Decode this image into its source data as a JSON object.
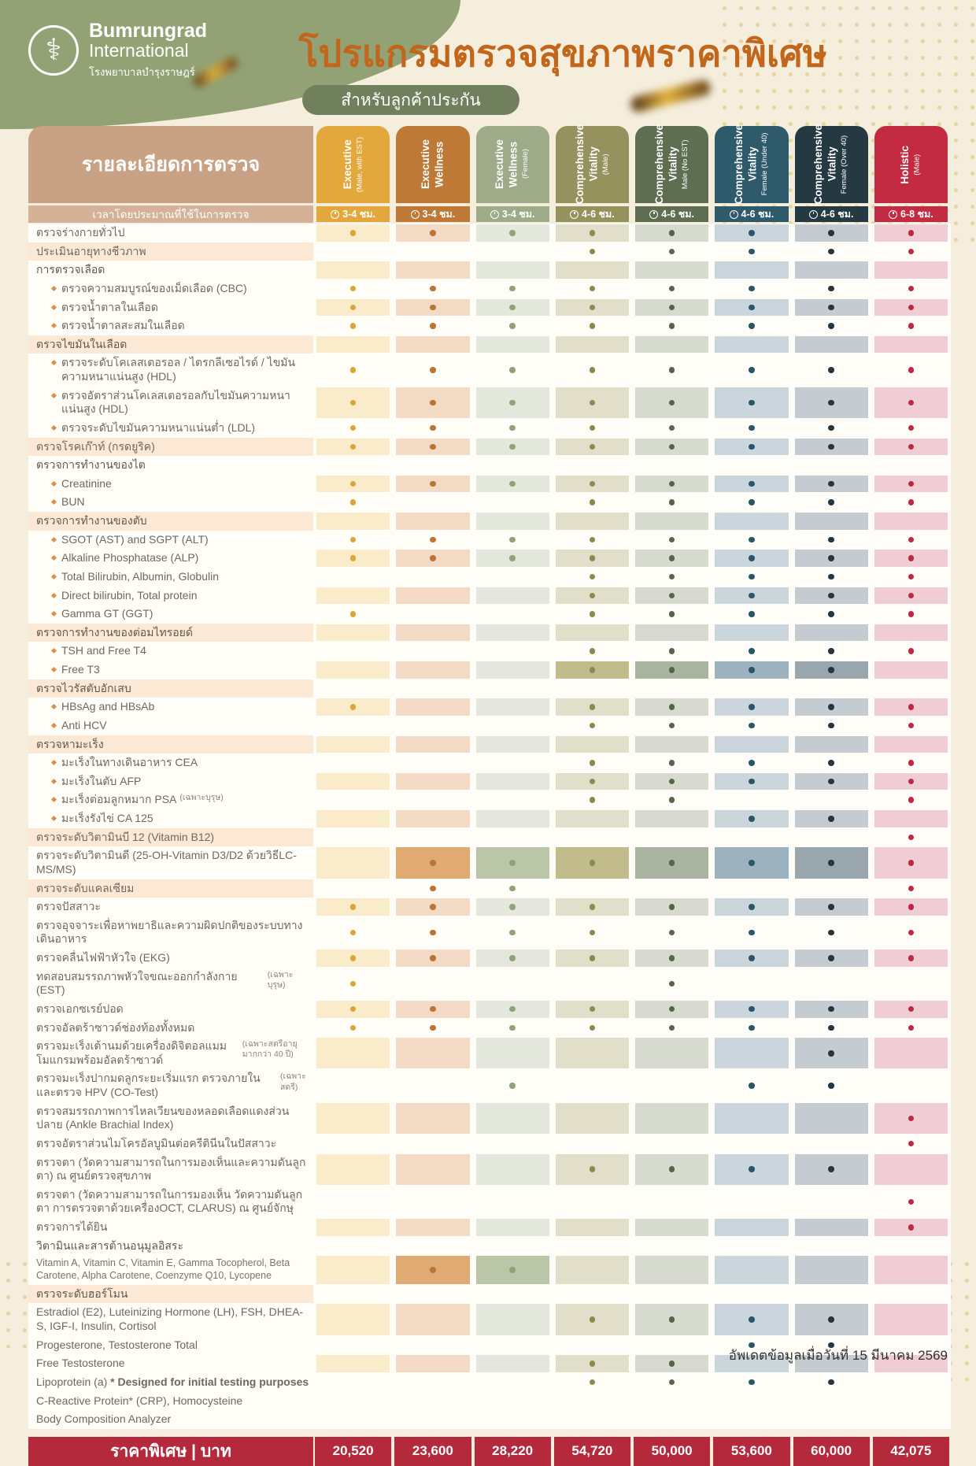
{
  "header": {
    "brand": {
      "line1": "Bumrungrad",
      "line2": "International",
      "line3": "โรงพยาบาลบำรุงราษฎร์"
    },
    "title": "โปรแกรมตรวจสุขภาพราคาพิเศษ",
    "badge": "สำหรับลูกค้าประกัน"
  },
  "theme": {
    "page_bg": "#F5EEDC",
    "blob_green": "#93A274",
    "title_orange": "#C2661C",
    "badge_green": "#71805C",
    "header_tan": "#C9A184",
    "time_tan": "#D4B197",
    "price_red": "#B42A3C",
    "label_tint": "#FBE9D6"
  },
  "table": {
    "details_header": "รายละเอียดการตรวจ",
    "time_label": "เวลาโดยประมาณที่ใช้ในการตรวจ",
    "price_label": "ราคาพิเศษ | บาท",
    "columns": [
      {
        "title_lines": [
          "Executive"
        ],
        "subtitle": "(Male, with EST)",
        "time": "3-4 ชม.",
        "price": "20,520",
        "head": "#E2A83B",
        "tint": "#FAECCB",
        "hl": "#EFD391",
        "dot": "#DCA637"
      },
      {
        "title_lines": [
          "Executive",
          "Wellness"
        ],
        "subtitle": null,
        "time": "3-4 ชม.",
        "price": "23,600",
        "head": "#BE7936",
        "tint": "#F2DAC4",
        "hl": "#DFAB72",
        "dot": "#BB7434"
      },
      {
        "title_lines": [
          "Executive",
          "Wellness"
        ],
        "subtitle": "(Female)",
        "time": "3-4 ชม.",
        "price": "28,220",
        "head": "#9DAB89",
        "tint": "#E4E7DB",
        "hl": "#B9C6A7",
        "dot": "#92A277"
      },
      {
        "title_lines": [
          "Comprehensive",
          "Vitality"
        ],
        "subtitle": "(Male)",
        "time": "4-6 ชม.",
        "price": "54,720",
        "head": "#96925D",
        "tint": "#E1DECA",
        "hl": "#C2BB8B",
        "dot": "#8B8850"
      },
      {
        "title_lines": [
          "Comprehensive",
          "Vitality"
        ],
        "subtitle": "Male (No EST)",
        "time": "4-6 ชม.",
        "price": "50,000",
        "head": "#5E6F51",
        "tint": "#D7DBCF",
        "hl": "#A9B5A0",
        "dot": "#556548"
      },
      {
        "title_lines": [
          "Comprehensive",
          "Vitality"
        ],
        "subtitle": "Female (Under 40)",
        "time": "4-6 ชม.",
        "price": "53,600",
        "head": "#2E5A6C",
        "tint": "#CAD6DC",
        "hl": "#9CB3BF",
        "dot": "#295669"
      },
      {
        "title_lines": [
          "Comprehensive",
          "Vitality"
        ],
        "subtitle": "Female (Over 40)",
        "time": "4-6 ชม.",
        "price": "60,000",
        "head": "#253943",
        "tint": "#C4CCD2",
        "hl": "#99A6AE",
        "dot": "#243740"
      },
      {
        "title_lines": [
          "Holistic"
        ],
        "subtitle": "(Male)",
        "time": "6-8 ชม.",
        "price": "42,075",
        "head": "#C22B41",
        "tint": "#F0CDD4",
        "hl": "#E09EAC",
        "dot": "#BB2A41"
      }
    ],
    "rows": [
      {
        "label": "ตรวจร่างกายทั่วไป",
        "type": "item",
        "dots": [
          1,
          1,
          1,
          1,
          1,
          1,
          1,
          1
        ]
      },
      {
        "label": "ประเมินอายุทางชีวภาพ",
        "type": "item",
        "tint": true,
        "dots": [
          0,
          0,
          0,
          1,
          1,
          1,
          1,
          1
        ]
      },
      {
        "label": "การตรวจเลือด",
        "type": "section",
        "dots": [
          0,
          0,
          0,
          0,
          0,
          0,
          0,
          0
        ]
      },
      {
        "label": "ตรวจความสมบูรณ์ของเม็ดเลือด (CBC)",
        "type": "sub",
        "dots": [
          1,
          1,
          1,
          1,
          1,
          1,
          1,
          1
        ]
      },
      {
        "label": "ตรวจน้ำตาลในเลือด",
        "type": "sub",
        "dots": [
          1,
          1,
          1,
          1,
          1,
          1,
          1,
          1
        ]
      },
      {
        "label": "ตรวจน้ำตาลสะสมในเลือด",
        "type": "sub",
        "dots": [
          1,
          1,
          1,
          1,
          1,
          1,
          1,
          1
        ]
      },
      {
        "label": "ตรวจไขมันในเลือด",
        "type": "section",
        "tint": true,
        "dots": [
          0,
          0,
          0,
          0,
          0,
          0,
          0,
          0
        ]
      },
      {
        "label": "ตรวจระดับโคเลสเตอรอล / ไตรกลีเซอไรด์ / ไขมันความหนาแน่นสูง (HDL)",
        "type": "sub",
        "dots": [
          1,
          1,
          1,
          1,
          1,
          1,
          1,
          1
        ]
      },
      {
        "label": "ตรวจอัตราส่วนโคเลสเตอรอลกับไขมันความหนาแน่นสูง (HDL)",
        "type": "sub",
        "dots": [
          1,
          1,
          1,
          1,
          1,
          1,
          1,
          1
        ]
      },
      {
        "label": "ตรวจระดับไขมันความหนาแน่นต่ำ (LDL)",
        "type": "sub",
        "dots": [
          1,
          1,
          1,
          1,
          1,
          1,
          1,
          1
        ]
      },
      {
        "label": "ตรวจโรคเก๊าท์ (กรดยูริค)",
        "type": "item",
        "tint": true,
        "dots": [
          1,
          1,
          1,
          1,
          1,
          1,
          1,
          1
        ]
      },
      {
        "label": "ตรวจการทำงานของไต",
        "type": "section",
        "dots": [
          0,
          0,
          0,
          0,
          0,
          0,
          0,
          0
        ]
      },
      {
        "label": "Creatinine",
        "type": "sub",
        "dots": [
          1,
          1,
          1,
          1,
          1,
          1,
          1,
          1
        ]
      },
      {
        "label": "BUN",
        "type": "sub",
        "dots": [
          1,
          0,
          0,
          1,
          1,
          1,
          1,
          1
        ]
      },
      {
        "label": "ตรวจการทำงานของตับ",
        "type": "section",
        "tint": true,
        "dots": [
          0,
          0,
          0,
          0,
          0,
          0,
          0,
          0
        ]
      },
      {
        "label": "SGOT (AST) and SGPT (ALT)",
        "type": "sub",
        "dots": [
          1,
          1,
          1,
          1,
          1,
          1,
          1,
          1
        ]
      },
      {
        "label": "Alkaline Phosphatase (ALP)",
        "type": "sub",
        "dots": [
          1,
          1,
          1,
          1,
          1,
          1,
          1,
          1
        ]
      },
      {
        "label": "Total Bilirubin, Albumin, Globulin",
        "type": "sub",
        "dots": [
          0,
          0,
          0,
          1,
          1,
          1,
          1,
          1
        ]
      },
      {
        "label": "Direct bilirubin, Total protein",
        "type": "sub",
        "dots": [
          0,
          0,
          0,
          1,
          1,
          1,
          1,
          1
        ]
      },
      {
        "label": "Gamma GT (GGT)",
        "type": "sub",
        "dots": [
          1,
          0,
          0,
          1,
          1,
          1,
          1,
          1
        ]
      },
      {
        "label": "ตรวจการทำงานของต่อมไทรอยด์",
        "type": "section",
        "tint": true,
        "dots": [
          0,
          0,
          0,
          0,
          0,
          0,
          0,
          0
        ]
      },
      {
        "label": "TSH and Free T4",
        "type": "sub",
        "dots": [
          0,
          0,
          0,
          1,
          1,
          1,
          1,
          1
        ]
      },
      {
        "label": "Free T3",
        "type": "sub",
        "dots": [
          0,
          0,
          0,
          1,
          1,
          1,
          1,
          0
        ],
        "hl": [
          0,
          0,
          0,
          1,
          1,
          1,
          1,
          0
        ]
      },
      {
        "label": "ตรวจไวรัสตับอักเสบ",
        "type": "section",
        "tint": true,
        "dots": [
          0,
          0,
          0,
          0,
          0,
          0,
          0,
          0
        ]
      },
      {
        "label": "HBsAg and HBsAb",
        "type": "sub",
        "dots": [
          1,
          0,
          0,
          1,
          1,
          1,
          1,
          1
        ]
      },
      {
        "label": "Anti HCV",
        "type": "sub",
        "dots": [
          0,
          0,
          0,
          1,
          1,
          1,
          1,
          1
        ]
      },
      {
        "label": "ตรวจหามะเร็ง",
        "type": "section",
        "tint": true,
        "dots": [
          0,
          0,
          0,
          0,
          0,
          0,
          0,
          0
        ]
      },
      {
        "label": "มะเร็งในทางเดินอาหาร CEA",
        "type": "sub",
        "dots": [
          0,
          0,
          0,
          1,
          1,
          1,
          1,
          1
        ]
      },
      {
        "label": "มะเร็งในตับ AFP",
        "type": "sub",
        "dots": [
          0,
          0,
          0,
          1,
          1,
          1,
          1,
          1
        ]
      },
      {
        "label": "มะเร็งต่อมลูกหมาก PSA",
        "small": "(เฉพาะบุรุษ)",
        "type": "sub",
        "dots": [
          0,
          0,
          0,
          1,
          1,
          0,
          0,
          1
        ]
      },
      {
        "label": "มะเร็งรังไข่ CA 125",
        "type": "sub",
        "dots": [
          0,
          0,
          0,
          0,
          0,
          1,
          1,
          0
        ]
      },
      {
        "label": "ตรวจระดับวิตามินบี 12 (Vitamin B12)",
        "type": "item",
        "tint": true,
        "dots": [
          0,
          0,
          0,
          0,
          0,
          0,
          0,
          1
        ]
      },
      {
        "label": "ตรวจระดับวิตามินดี (25-OH-Vitamin D3/D2 ด้วยวิธีLC-MS/MS)",
        "type": "item",
        "dots": [
          0,
          1,
          1,
          1,
          1,
          1,
          1,
          1
        ],
        "hl": [
          0,
          1,
          1,
          1,
          1,
          1,
          1,
          0
        ]
      },
      {
        "label": "ตรวจระดับแคลเซียม",
        "type": "item",
        "tint": true,
        "dots": [
          0,
          1,
          1,
          0,
          0,
          0,
          0,
          1
        ]
      },
      {
        "label": "ตรวจปัสสาวะ",
        "type": "item",
        "dots": [
          1,
          1,
          1,
          1,
          1,
          1,
          1,
          1
        ]
      },
      {
        "label": "ตรวจอุจจาระเพื่อหาพยาธิและความผิดปกติของระบบทางเดินอาหาร",
        "type": "item",
        "dots": [
          1,
          1,
          1,
          1,
          1,
          1,
          1,
          1
        ]
      },
      {
        "label": "ตรวจคลื่นไฟฟ้าหัวใจ (EKG)",
        "type": "item",
        "dots": [
          1,
          1,
          1,
          1,
          1,
          1,
          1,
          1
        ]
      },
      {
        "label": "ทดสอบสมรรถภาพหัวใจขณะออกกำลังกาย (EST)",
        "small": "(เฉพาะบุรุษ)",
        "type": "item",
        "dots": [
          1,
          0,
          0,
          0,
          1,
          0,
          0,
          0
        ]
      },
      {
        "label": "ตรวจเอกซเรย์ปอด",
        "type": "item",
        "dots": [
          1,
          1,
          1,
          1,
          1,
          1,
          1,
          1
        ]
      },
      {
        "label": "ตรวจอัลตร้าซาวด์ช่องท้องทั้งหมด",
        "type": "item",
        "dots": [
          1,
          1,
          1,
          1,
          1,
          1,
          1,
          1
        ]
      },
      {
        "label": "ตรวจมะเร็งเต้านมด้วยเครื่องดิจิตอลแมมโมแกรมพร้อมอัลตร้าซาวด์",
        "small": "(เฉพาะสตรีอายุมากกว่า 40 ปี)",
        "type": "item",
        "dots": [
          0,
          0,
          0,
          0,
          0,
          0,
          1,
          0
        ]
      },
      {
        "label": "ตรวจมะเร็งปากมดลูกระยะเริ่มแรก ตรวจภายใน และตรวจ HPV (CO-Test)",
        "small": "(เฉพาะสตรี)",
        "type": "item",
        "dots": [
          0,
          0,
          1,
          0,
          0,
          1,
          1,
          0
        ]
      },
      {
        "label": "ตรวจสมรรถภาพการไหลเวียนของหลอดเลือดแดงส่วนปลาย (Ankle Brachial Index)",
        "type": "item",
        "dots": [
          0,
          0,
          0,
          0,
          0,
          0,
          0,
          1
        ]
      },
      {
        "label": "ตรวจอัตราส่วนไมโครอัลบูมินต่อครีตินีนในปัสสาวะ",
        "type": "item",
        "dots": [
          0,
          0,
          0,
          0,
          0,
          0,
          0,
          1
        ]
      },
      {
        "label": "ตรวจตา (วัดความสามารถในการมองเห็นและความดันลูกตา) ณ ศูนย์ตรวจสุขภาพ",
        "type": "item",
        "dots": [
          0,
          0,
          0,
          1,
          1,
          1,
          1,
          0
        ]
      },
      {
        "label": "ตรวจตา (วัดความสามารถในการมองเห็น วัดความดันลูกตา การตรวจตาด้วยเครื่องOCT, CLARUS) ณ ศูนย์จักษุ",
        "type": "item",
        "dots": [
          0,
          0,
          0,
          0,
          0,
          0,
          0,
          1
        ]
      },
      {
        "label": "ตรวจการได้ยิน",
        "type": "item",
        "dots": [
          0,
          0,
          0,
          0,
          0,
          0,
          0,
          1
        ]
      },
      {
        "label": "วิตามินและสารต้านอนุมูลอิสระ",
        "type": "section",
        "dots": [
          0,
          0,
          0,
          0,
          0,
          0,
          0,
          0
        ]
      },
      {
        "label": "Vitamin A, Vitamin C, Vitamin E, Gamma Tocopherol, Beta Carotene, Alpha Carotene, Coenzyme Q10, Lycopene",
        "type": "plain",
        "small_text": true,
        "dots": [
          0,
          1,
          1,
          0,
          0,
          0,
          0,
          0
        ],
        "hl": [
          0,
          1,
          1,
          0,
          0,
          0,
          0,
          0
        ]
      },
      {
        "label": "ตรวจระดับฮอร์โมน",
        "type": "section",
        "tint": true,
        "dots": [
          0,
          0,
          0,
          0,
          0,
          0,
          0,
          0
        ]
      },
      {
        "label": "Estradiol (E2), Luteinizing Hormone (LH), FSH, DHEA-S, IGF-I, Insulin, Cortisol",
        "type": "plain",
        "dots": [
          0,
          0,
          0,
          1,
          1,
          1,
          1,
          0
        ]
      },
      {
        "label": "Progesterone, Testosterone Total",
        "type": "plain",
        "dots": [
          0,
          0,
          0,
          0,
          0,
          1,
          1,
          0
        ]
      },
      {
        "label": "Free Testosterone",
        "type": "plain",
        "dots": [
          0,
          0,
          0,
          1,
          1,
          0,
          0,
          0
        ]
      },
      {
        "label": "Lipoprotein (a) ",
        "bold": "* Designed for initial testing purposes",
        "type": "plain",
        "dots": [
          0,
          0,
          0,
          1,
          1,
          1,
          1,
          0
        ]
      },
      {
        "label": "C-Reactive Protein* (CRP), Homocysteine",
        "type": "plain",
        "noband": true,
        "dots": [
          0,
          0,
          0,
          0,
          0,
          0,
          0,
          0
        ]
      },
      {
        "label": "Body Composition Analyzer",
        "type": "plain",
        "noband": true,
        "dots": [
          0,
          0,
          0,
          0,
          0,
          0,
          0,
          0
        ]
      }
    ]
  },
  "footer": {
    "updated": "อัพเดตข้อมูลเมื่อวันที่ 15 มีนาคม 2569"
  }
}
